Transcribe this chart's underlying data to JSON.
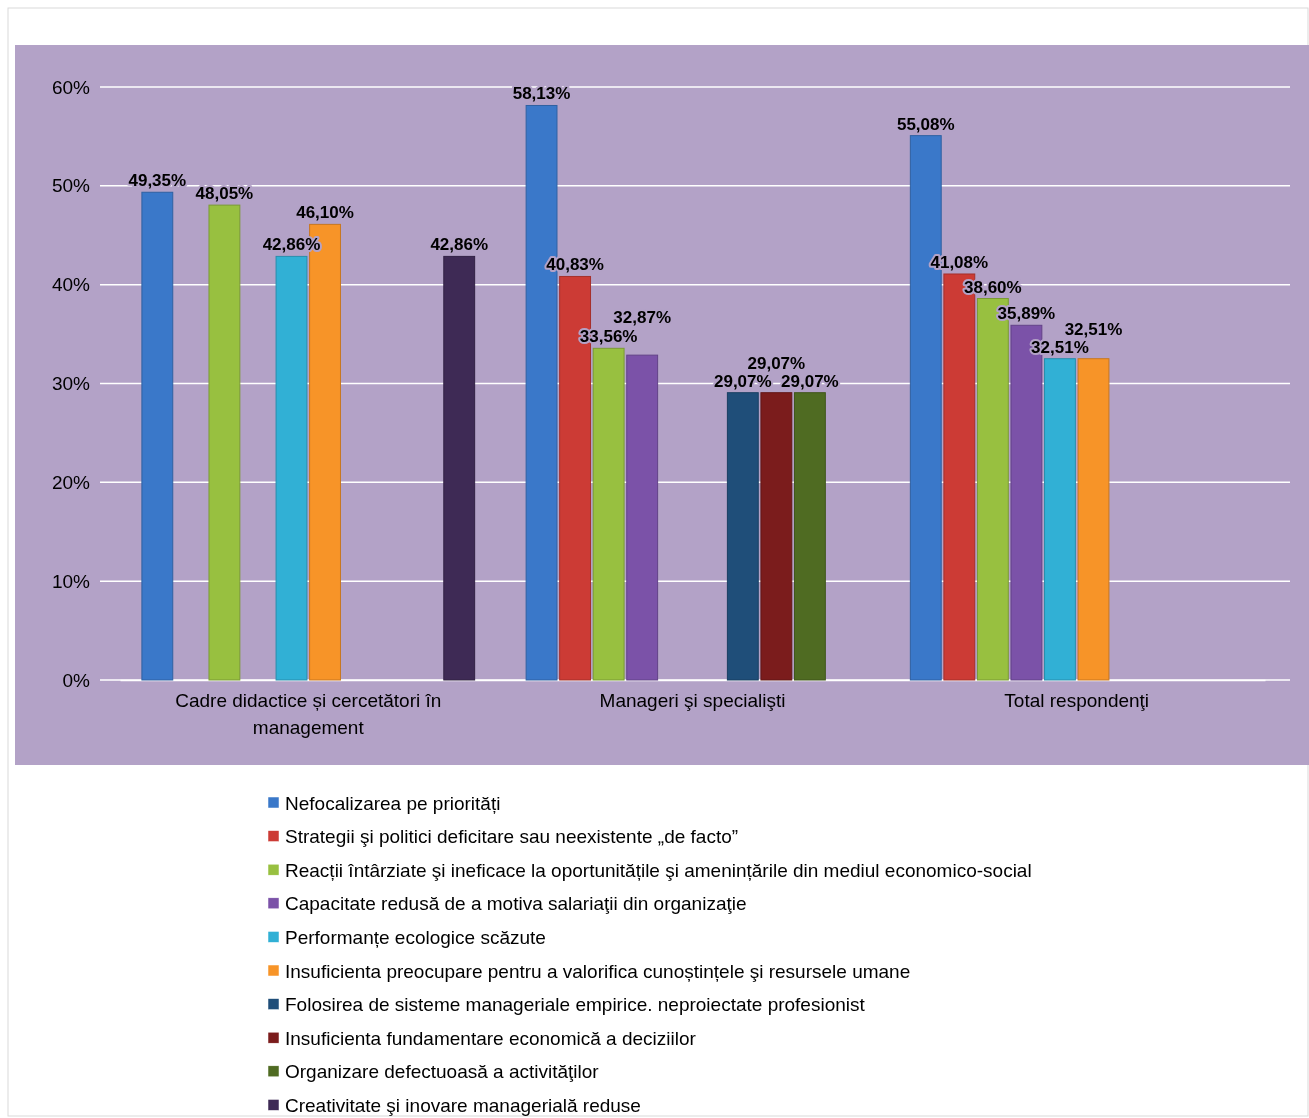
{
  "chart_data": {
    "type": "bar",
    "categories": [
      "Cadre didactice și cercetători în management",
      "Manageri şi specialişti",
      "Total respondenţi"
    ],
    "ylim": [
      0,
      60
    ],
    "yticks": [
      {
        "value": 0,
        "label": "0%"
      },
      {
        "value": 10,
        "label": "10%"
      },
      {
        "value": 20,
        "label": "20%"
      },
      {
        "value": 30,
        "label": "30%"
      },
      {
        "value": 40,
        "label": "40%"
      },
      {
        "value": 50,
        "label": "50%"
      },
      {
        "value": 60,
        "label": "60%"
      }
    ],
    "grid": "y",
    "legend": "bottom",
    "series": [
      {
        "name": "Nefocalizarea pe priorități",
        "color": "#3a78c9",
        "values": [
          49.35,
          58.13,
          55.08
        ],
        "value_labels": [
          "49,35%",
          "58,13%",
          "55,08%"
        ]
      },
      {
        "name": "Strategii şi politici deficitare sau neexistente „de facto”",
        "color": "#cc3b35",
        "values": [
          null,
          40.83,
          41.08
        ],
        "value_labels": [
          null,
          "40,83%",
          "41,08%"
        ]
      },
      {
        "name": "Reacții întârziate şi ineficace la oportunitățile şi amenințările din mediul economico-social",
        "color": "#98c040",
        "values": [
          48.05,
          33.56,
          38.6
        ],
        "value_labels": [
          "48,05%",
          "33,56%",
          "38,60%"
        ]
      },
      {
        "name": "Capacitate redusă de a motiva salariaţii din organizaţie",
        "color": "#7b52a8",
        "values": [
          null,
          32.87,
          35.89
        ],
        "value_labels": [
          null,
          "32,87%",
          "35,89%"
        ]
      },
      {
        "name": "Performanțe ecologice scăzute",
        "color": "#31b0d5",
        "values": [
          42.86,
          null,
          32.51
        ],
        "value_labels": [
          "42,86%",
          null,
          "32,51%"
        ]
      },
      {
        "name": "Insuficienta preocupare pentru a valorifica cunoștințele şi resursele umane",
        "color": "#f79428",
        "values": [
          46.1,
          null,
          32.51
        ],
        "value_labels": [
          "46,10%",
          null,
          "32,51%"
        ]
      },
      {
        "name": "Folosirea de sisteme manageriale empirice. neproiectate profesionist",
        "color": "#1f4e79",
        "values": [
          null,
          29.07,
          null
        ],
        "value_labels": [
          null,
          "29,07%",
          null
        ]
      },
      {
        "name": "Insuficienta fundamentare economică a deciziilor",
        "color": "#7b1c1c",
        "values": [
          null,
          29.07,
          null
        ],
        "value_labels": [
          null,
          "29,07%",
          null
        ]
      },
      {
        "name": "Organizare defectuoasă a activităţilor",
        "color": "#4f6b22",
        "values": [
          null,
          29.07,
          null
        ],
        "value_labels": [
          null,
          "29,07%",
          null
        ]
      },
      {
        "name": "Creativitate şi inovare managerială reduse",
        "color": "#3e2a55",
        "values": [
          42.86,
          null,
          null
        ],
        "value_labels": [
          "42,86%",
          null,
          null
        ]
      }
    ]
  }
}
